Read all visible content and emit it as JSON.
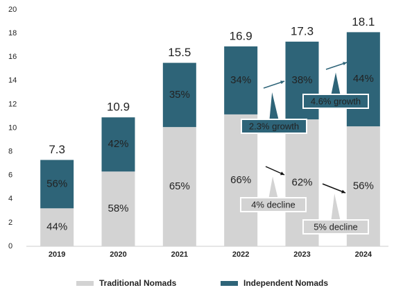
{
  "chart_data": {
    "type": "bar",
    "stacked": true,
    "categories": [
      "2019",
      "2020",
      "2021",
      "2022",
      "2023",
      "2024"
    ],
    "series": [
      {
        "name": "Traditional Nomads",
        "color": "#d3d3d3",
        "values": [
          3.21,
          6.32,
          10.08,
          11.15,
          10.73,
          10.14
        ],
        "value_labels": [
          "44%",
          "58%",
          "65%",
          "66%",
          "62%",
          "56%"
        ]
      },
      {
        "name": "Independent Nomads",
        "color": "#2e6478",
        "values": [
          4.09,
          4.58,
          5.43,
          5.75,
          6.57,
          7.96
        ],
        "value_labels": [
          "56%",
          "42%",
          "35%",
          "34%",
          "38%",
          "44%"
        ]
      }
    ],
    "totals": [
      7.3,
      10.9,
      15.5,
      16.9,
      17.3,
      18.1
    ],
    "annotations": [
      "2.3% growth",
      "4.6% growth",
      "4% decline",
      "5% decline"
    ],
    "ylim": [
      0,
      20
    ],
    "yticks": [
      0,
      2,
      4,
      6,
      8,
      10,
      12,
      14,
      16,
      18,
      20
    ],
    "grid": false,
    "legend": "bottom"
  }
}
